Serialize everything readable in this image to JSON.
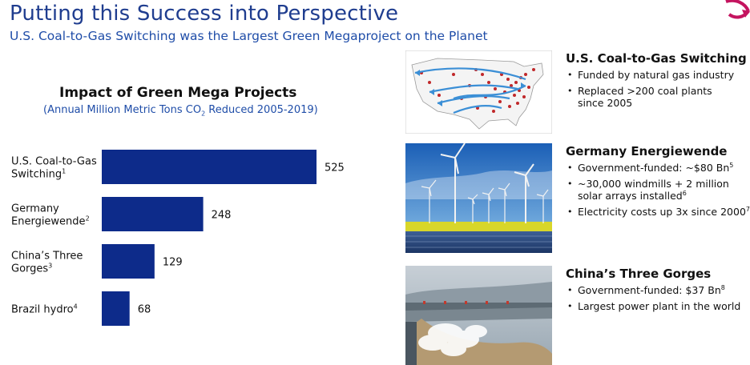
{
  "header": {
    "title": "Putting this Success into Perspective",
    "subtitle": "U.S. Coal-to-Gas Switching was the Largest Green Megaproject on the Planet"
  },
  "chart_data": {
    "type": "bar",
    "orientation": "horizontal",
    "title": "Impact of Green Mega Projects",
    "subtitle_prefix": "(Annual Million Metric Tons CO",
    "subtitle_sub": "2",
    "subtitle_suffix": " Reduced 2005-2019)",
    "categories": [
      {
        "lines": [
          "U.S. Coal-to-Gas",
          "Switching"
        ],
        "footnote": "1"
      },
      {
        "lines": [
          "Germany",
          "Energiewende"
        ],
        "footnote": "2"
      },
      {
        "lines": [
          "China’s Three",
          "Gorges"
        ],
        "footnote": "3"
      },
      {
        "lines": [
          "Brazil hydro"
        ],
        "footnote": "4"
      }
    ],
    "values": [
      525,
      248,
      129,
      68
    ],
    "bar_color": "#0d2b8a",
    "grid": false,
    "legend": "none"
  },
  "sections": [
    {
      "title": "U.S. Coal-to-Gas Switching",
      "bullets": [
        {
          "text": "Funded by natural gas industry",
          "footnote": ""
        },
        {
          "text": "Replaced >200 coal plants since 2005",
          "footnote": ""
        }
      ],
      "image": "us-map-pipelines-image"
    },
    {
      "title": "Germany Energiewende",
      "bullets": [
        {
          "text": "Government-funded: ~$80 Bn",
          "footnote": "5"
        },
        {
          "text": "~30,000 windmills + 2 million solar arrays installed",
          "footnote": "6"
        },
        {
          "text": "Electricity costs up 3x since 2000",
          "footnote": "7"
        }
      ],
      "image": "wind-turbines-solar-image"
    },
    {
      "title": "China’s Three Gorges",
      "bullets": [
        {
          "text": "Government-funded: $37 Bn",
          "footnote": "8"
        },
        {
          "text": "Largest power plant in the world",
          "footnote": ""
        }
      ],
      "image": "three-gorges-dam-image"
    }
  ],
  "colors": {
    "title_blue": "#1f3d8f",
    "subtitle_blue": "#1f4da8",
    "bar_navy": "#0d2b8a",
    "logo_magenta": "#c4145f"
  }
}
